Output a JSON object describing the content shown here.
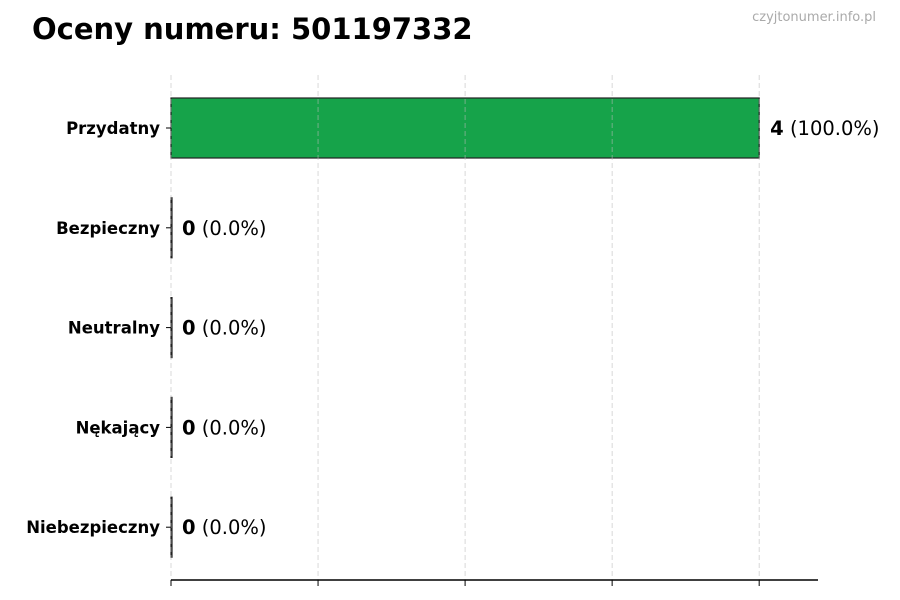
{
  "title": "Oceny numeru: 501197332",
  "watermark": "czyjtonumer.info.pl",
  "chart_data": {
    "type": "bar",
    "orientation": "horizontal",
    "title": "Oceny numeru: 501197332",
    "categories": [
      "Przydatny",
      "Bezpieczny",
      "Neutralny",
      "Nękający",
      "Niebezpieczny"
    ],
    "values": [
      4,
      0,
      0,
      0,
      0
    ],
    "labels": [
      {
        "count": "4",
        "pct": "(100.0%)"
      },
      {
        "count": "0",
        "pct": "(0.0%)"
      },
      {
        "count": "0",
        "pct": "(0.0%)"
      },
      {
        "count": "0",
        "pct": "(0.0%)"
      },
      {
        "count": "0",
        "pct": "(0.0%)"
      }
    ],
    "colors": [
      "#16a34a",
      "#16a34a",
      "#16a34a",
      "#16a34a",
      "#16a34a"
    ],
    "xlim": [
      0,
      4.4
    ],
    "xticks": [
      0,
      1,
      2,
      3,
      4
    ],
    "xtick_labels_shown": false,
    "grid": "x-dashed",
    "xlabel": "",
    "ylabel": ""
  }
}
